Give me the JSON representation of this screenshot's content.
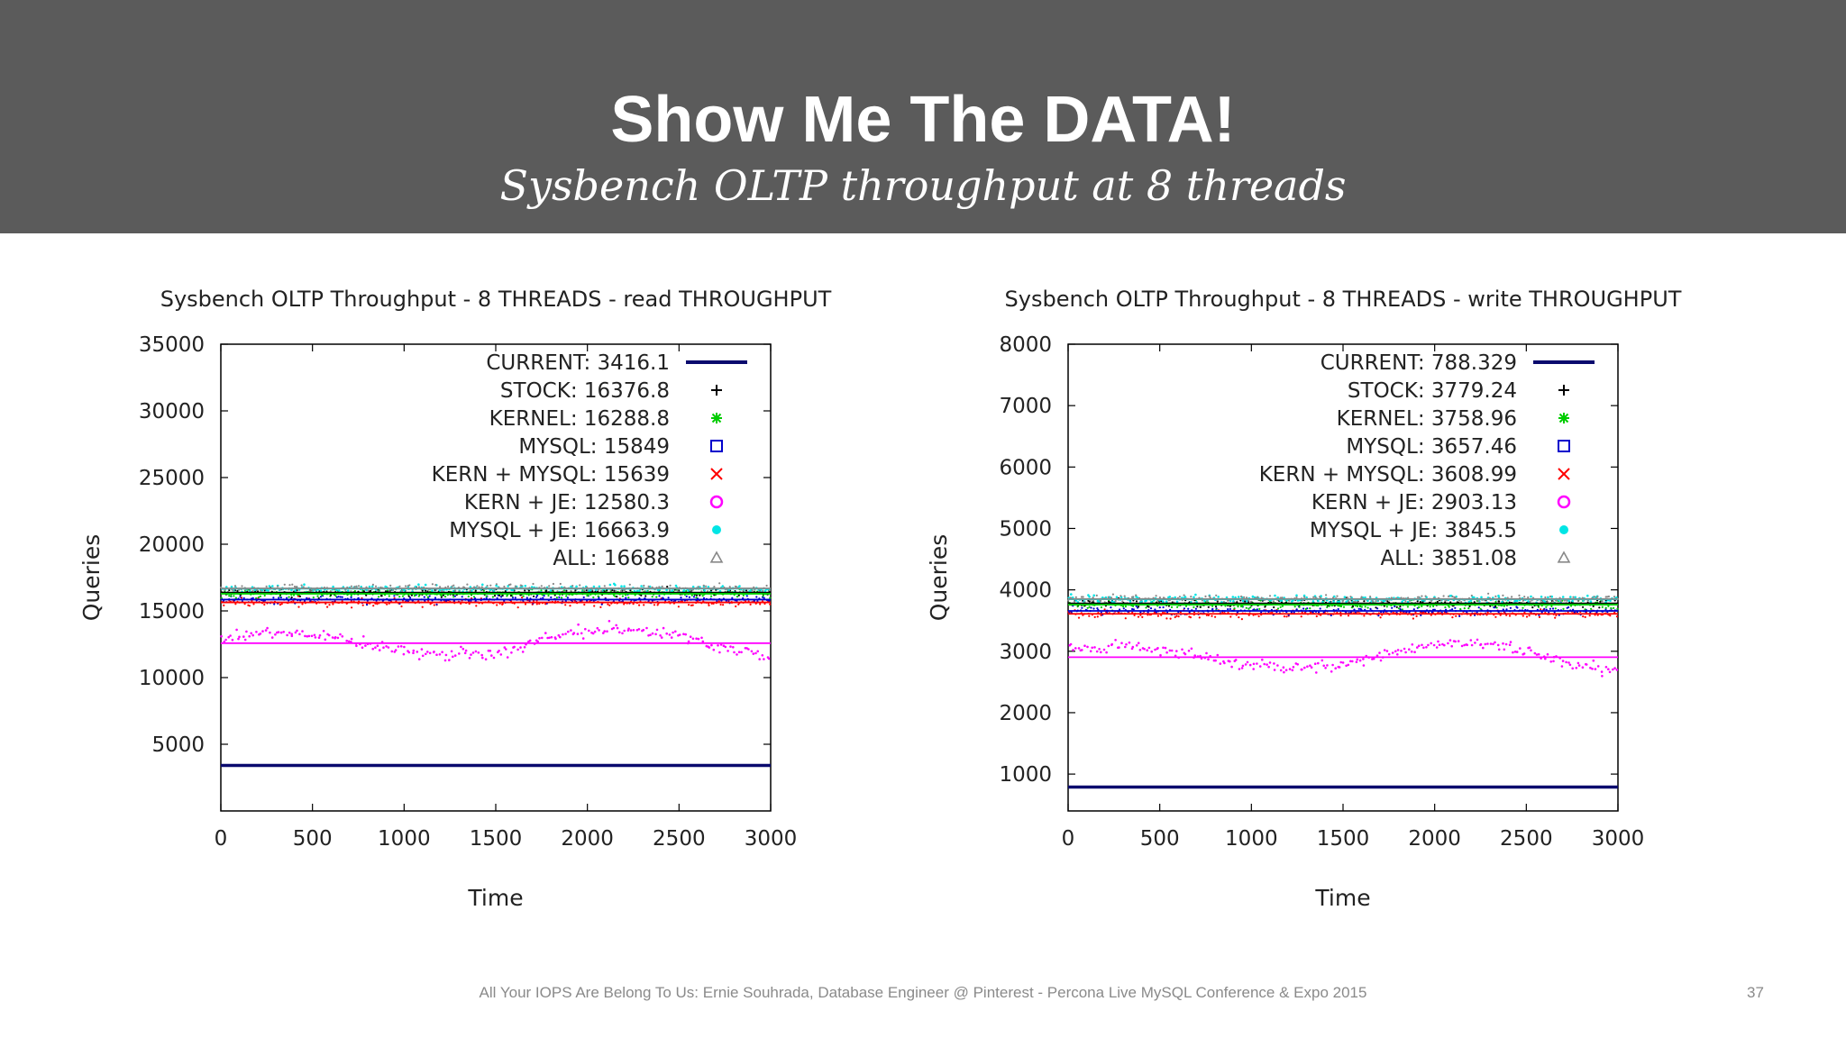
{
  "slide": {
    "title": "Show Me The DATA!",
    "subtitle": "Sysbench OLTP throughput at 8 threads",
    "footer": "All Your IOPS Are Belong To Us: Ernie Souhrada, Database Engineer @ Pinterest - Percona Live MySQL Conference & Expo 2015",
    "page_number": "37"
  },
  "chart_data": [
    {
      "type": "scatter",
      "title": "Sysbench OLTP Throughput - 8 THREADS - read THROUGHPUT",
      "xlabel": "Time",
      "ylabel": "Queries",
      "xlim": [
        0,
        3000
      ],
      "ylim": [
        0,
        35000
      ],
      "xticks": [
        "0",
        "500",
        "1000",
        "1500",
        "2000",
        "2500",
        "3000"
      ],
      "yticks": [
        "5000",
        "10000",
        "15000",
        "20000",
        "25000",
        "30000",
        "35000"
      ],
      "legend_position": "top-right",
      "series": [
        {
          "name": "CURRENT",
          "label": "CURRENT: 3416.1",
          "value": 3416.1,
          "marker": "line",
          "color": "#0a0a6e"
        },
        {
          "name": "STOCK",
          "label": "STOCK: 16376.8",
          "value": 16376.8,
          "marker": "plus",
          "color": "#000000"
        },
        {
          "name": "KERNEL",
          "label": "KERNEL: 16288.8",
          "value": 16288.8,
          "marker": "star",
          "color": "#00cc00"
        },
        {
          "name": "MYSQL",
          "label": "MYSQL: 15849",
          "value": 15849,
          "marker": "square",
          "color": "#0000cc"
        },
        {
          "name": "KERN + MYSQL",
          "label": "KERN + MYSQL: 15639",
          "value": 15639,
          "marker": "cross",
          "color": "#ff0000"
        },
        {
          "name": "KERN + JE",
          "label": "KERN + JE: 12580.3",
          "value": 12580.3,
          "marker": "circle",
          "color": "#ff00ff"
        },
        {
          "name": "MYSQL + JE",
          "label": "MYSQL + JE: 16663.9",
          "value": 16663.9,
          "marker": "dot",
          "color": "#00e5e5"
        },
        {
          "name": "ALL",
          "label": "ALL: 16688",
          "value": 16688,
          "marker": "triangle",
          "color": "#888888"
        }
      ]
    },
    {
      "type": "scatter",
      "title": "Sysbench OLTP Throughput - 8 THREADS - write THROUGHPUT",
      "xlabel": "Time",
      "ylabel": "Queries",
      "xlim": [
        0,
        3000
      ],
      "ylim": [
        400,
        8000
      ],
      "xticks": [
        "0",
        "500",
        "1000",
        "1500",
        "2000",
        "2500",
        "3000"
      ],
      "yticks": [
        "1000",
        "2000",
        "3000",
        "4000",
        "5000",
        "6000",
        "7000",
        "8000"
      ],
      "legend_position": "top-right",
      "series": [
        {
          "name": "CURRENT",
          "label": "CURRENT: 788.329",
          "value": 788.329,
          "marker": "line",
          "color": "#0a0a6e"
        },
        {
          "name": "STOCK",
          "label": "STOCK: 3779.24",
          "value": 3779.24,
          "marker": "plus",
          "color": "#000000"
        },
        {
          "name": "KERNEL",
          "label": "KERNEL: 3758.96",
          "value": 3758.96,
          "marker": "star",
          "color": "#00cc00"
        },
        {
          "name": "MYSQL",
          "label": "MYSQL: 3657.46",
          "value": 3657.46,
          "marker": "square",
          "color": "#0000cc"
        },
        {
          "name": "KERN + MYSQL",
          "label": "KERN + MYSQL: 3608.99",
          "value": 3608.99,
          "marker": "cross",
          "color": "#ff0000"
        },
        {
          "name": "KERN + JE",
          "label": "KERN + JE: 2903.13",
          "value": 2903.13,
          "marker": "circle",
          "color": "#ff00ff"
        },
        {
          "name": "MYSQL + JE",
          "label": "MYSQL + JE: 3845.5",
          "value": 3845.5,
          "marker": "dot",
          "color": "#00e5e5"
        },
        {
          "name": "ALL",
          "label": "ALL: 3851.08",
          "value": 3851.08,
          "marker": "triangle",
          "color": "#888888"
        }
      ]
    }
  ]
}
